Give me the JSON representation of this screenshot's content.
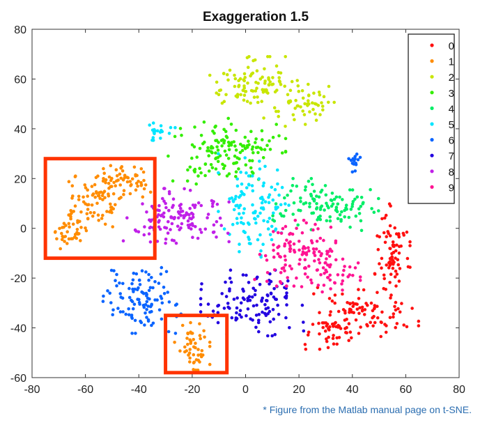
{
  "note": "* Figure from the Matlab manual page on t-SNE.",
  "chart_data": {
    "type": "scatter",
    "title": "Exaggeration 1.5",
    "xlabel": "",
    "ylabel": "",
    "xlim": [
      -80,
      80
    ],
    "ylim": [
      -60,
      80
    ],
    "xticks": [
      "-80",
      "-60",
      "-40",
      "-20",
      "0",
      "20",
      "40",
      "60",
      "80"
    ],
    "yticks": [
      "-60",
      "-40",
      "-20",
      "0",
      "20",
      "40",
      "60",
      "80"
    ],
    "grid": false,
    "legend": "top-right",
    "clusters": [
      {
        "name": "0",
        "color": "#ff1010",
        "regions": [
          {
            "cx": 55,
            "cy": -10,
            "sx": 3,
            "sy": 9,
            "n": 80
          },
          {
            "cx": 45,
            "cy": -33,
            "sx": 9,
            "sy": 5,
            "n": 90
          },
          {
            "cx": 32,
            "cy": -42,
            "sx": 5,
            "sy": 3,
            "n": 40
          }
        ]
      },
      {
        "name": "1",
        "color": "#ff8c00",
        "regions": [
          {
            "cx": -45,
            "cy": 19,
            "sx": 5,
            "sy": 3,
            "n": 60
          },
          {
            "cx": -58,
            "cy": 10,
            "sx": 5,
            "sy": 5,
            "n": 70
          },
          {
            "cx": -66,
            "cy": -2,
            "sx": 3,
            "sy": 4,
            "n": 40
          },
          {
            "cx": -20,
            "cy": -46,
            "sx": 3,
            "sy": 5,
            "n": 50
          }
        ]
      },
      {
        "name": "2",
        "color": "#c8e600",
        "regions": [
          {
            "cx": 2,
            "cy": 58,
            "sx": 7,
            "sy": 5,
            "n": 90
          },
          {
            "cx": 20,
            "cy": 52,
            "sx": 6,
            "sy": 5,
            "n": 60
          }
        ]
      },
      {
        "name": "3",
        "color": "#33ee00",
        "regions": [
          {
            "cx": -7,
            "cy": 31,
            "sx": 10,
            "sy": 6,
            "n": 140
          }
        ]
      },
      {
        "name": "4",
        "color": "#00ee66",
        "regions": [
          {
            "cx": 30,
            "cy": 9,
            "sx": 9,
            "sy": 5,
            "n": 110
          }
        ]
      },
      {
        "name": "5",
        "color": "#00e5ff",
        "regions": [
          {
            "cx": -33,
            "cy": 39,
            "sx": 3,
            "sy": 2,
            "n": 20
          },
          {
            "cx": 3,
            "cy": 8,
            "sx": 6,
            "sy": 10,
            "n": 110
          }
        ]
      },
      {
        "name": "6",
        "color": "#0a64ff",
        "regions": [
          {
            "cx": -38,
            "cy": -29,
            "sx": 7,
            "sy": 6,
            "n": 110
          },
          {
            "cx": 41,
            "cy": 27,
            "sx": 2,
            "sy": 2,
            "n": 15
          }
        ]
      },
      {
        "name": "7",
        "color": "#2200e0",
        "regions": [
          {
            "cx": 3,
            "cy": -30,
            "sx": 9,
            "sy": 6,
            "n": 120
          }
        ]
      },
      {
        "name": "8",
        "color": "#c020e8",
        "regions": [
          {
            "cx": -26,
            "cy": 5,
            "sx": 9,
            "sy": 5,
            "n": 130
          }
        ]
      },
      {
        "name": "9",
        "color": "#ff1493",
        "regions": [
          {
            "cx": 20,
            "cy": -10,
            "sx": 8,
            "sy": 6,
            "n": 110
          },
          {
            "cx": 32,
            "cy": -18,
            "sx": 5,
            "sy": 4,
            "n": 40
          }
        ]
      }
    ],
    "highlight_boxes": [
      {
        "x": [
          -75,
          -34
        ],
        "y": [
          -12,
          28
        ],
        "color": "#ff3300"
      },
      {
        "x": [
          -30,
          -7
        ],
        "y": [
          -58,
          -35
        ],
        "color": "#ff3300"
      }
    ]
  }
}
